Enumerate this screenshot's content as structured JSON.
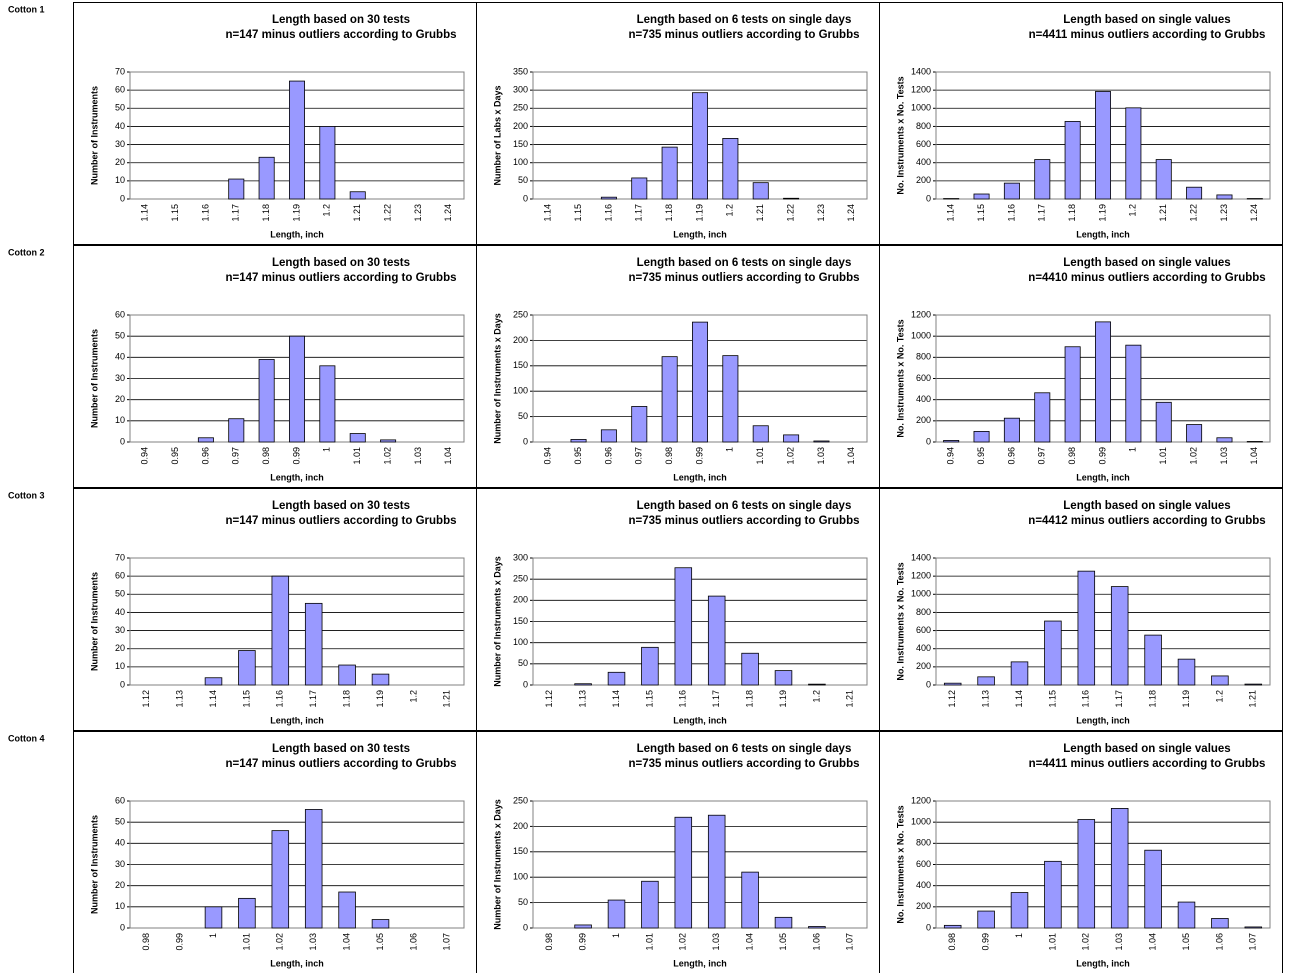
{
  "row_labels": [
    "Cotton 1",
    "Cotton 2",
    "Cotton 3",
    "Cotton 4"
  ],
  "chart_data": [
    {
      "type": "bar",
      "title": [
        "Length based on 30 tests",
        "n=147 minus outliers according to Grubbs"
      ],
      "xlabel": "Length, inch",
      "ylabel": "Number of Instruments",
      "categories": [
        "1.14",
        "1.15",
        "1.16",
        "1.17",
        "1.18",
        "1.19",
        "1.2",
        "1.21",
        "1.22",
        "1.23",
        "1.24"
      ],
      "values": [
        0,
        0,
        0,
        11,
        23,
        65,
        40,
        4,
        0,
        0,
        0
      ],
      "color": "#9999ff",
      "ylim": [
        0,
        70
      ],
      "yticks": [
        0,
        10,
        20,
        30,
        40,
        50,
        60,
        70
      ],
      "grid": true
    },
    {
      "type": "bar",
      "title": [
        "Length based on 6 tests on single days",
        "n=735 minus outliers according to Grubbs"
      ],
      "xlabel": "Length, inch",
      "ylabel": "Number of Labs x Days",
      "categories": [
        "1.14",
        "1.15",
        "1.16",
        "1.17",
        "1.18",
        "1.19",
        "1.2",
        "1.21",
        "1.22",
        "1.23",
        "1.24"
      ],
      "values": [
        0,
        0,
        5,
        58,
        143,
        293,
        167,
        45,
        2,
        0,
        0
      ],
      "color": "#9999ff",
      "ylim": [
        0,
        350
      ],
      "yticks": [
        0,
        50,
        100,
        150,
        200,
        250,
        300,
        350
      ],
      "grid": true
    },
    {
      "type": "bar",
      "title": [
        "Length based on single values",
        "n=4411 minus outliers according to Grubbs"
      ],
      "xlabel": "Length, inch",
      "ylabel": "No. Instruments x No. Tests",
      "categories": [
        "1.14",
        "1.15",
        "1.16",
        "1.17",
        "1.18",
        "1.19",
        "1.2",
        "1.21",
        "1.22",
        "1.23",
        "1.24"
      ],
      "values": [
        5,
        55,
        175,
        435,
        855,
        1185,
        1005,
        435,
        130,
        45,
        5
      ],
      "color": "#9999ff",
      "ylim": [
        0,
        1400
      ],
      "yticks": [
        0,
        200,
        400,
        600,
        800,
        1000,
        1200,
        1400
      ],
      "grid": true
    },
    {
      "type": "bar",
      "title": [
        "Length based on 30 tests",
        "n=147 minus outliers according to Grubbs"
      ],
      "xlabel": "Length, inch",
      "ylabel": "Number of Instruments",
      "categories": [
        "0.94",
        "0.95",
        "0.96",
        "0.97",
        "0.98",
        "0.99",
        "1",
        "1.01",
        "1.02",
        "1.03",
        "1.04"
      ],
      "values": [
        0,
        0,
        2,
        11,
        39,
        50,
        36,
        4,
        1,
        0,
        0
      ],
      "color": "#9999ff",
      "ylim": [
        0,
        60
      ],
      "yticks": [
        0,
        10,
        20,
        30,
        40,
        50,
        60
      ],
      "grid": true
    },
    {
      "type": "bar",
      "title": [
        "Length based on 6 tests on single days",
        "n=735 minus outliers according to Grubbs"
      ],
      "xlabel": "Length, inch",
      "ylabel": "Number of Instruments x Days",
      "categories": [
        "0.94",
        "0.95",
        "0.96",
        "0.97",
        "0.98",
        "0.99",
        "1",
        "1.01",
        "1.02",
        "1.03",
        "1.04"
      ],
      "values": [
        0,
        5,
        24,
        70,
        168,
        236,
        170,
        32,
        14,
        2,
        0
      ],
      "color": "#9999ff",
      "ylim": [
        0,
        250
      ],
      "yticks": [
        0,
        50,
        100,
        150,
        200,
        250
      ],
      "grid": true
    },
    {
      "type": "bar",
      "title": [
        "Length based on single values",
        "n=4410 minus outliers according to Grubbs"
      ],
      "xlabel": "Length, inch",
      "ylabel": "No. Instruments x No. Tests",
      "categories": [
        "0.94",
        "0.95",
        "0.96",
        "0.97",
        "0.98",
        "0.99",
        "1",
        "1.01",
        "1.02",
        "1.03",
        "1.04"
      ],
      "values": [
        15,
        100,
        225,
        465,
        900,
        1135,
        915,
        375,
        165,
        40,
        5
      ],
      "color": "#9999ff",
      "ylim": [
        0,
        1200
      ],
      "yticks": [
        0,
        200,
        400,
        600,
        800,
        1000,
        1200
      ],
      "grid": true
    },
    {
      "type": "bar",
      "title": [
        "Length based on 30 tests",
        "n=147 minus outliers according to Grubbs"
      ],
      "xlabel": "Length, inch",
      "ylabel": "Number of Instruments",
      "categories": [
        "1.12",
        "1.13",
        "1.14",
        "1.15",
        "1.16",
        "1.17",
        "1.18",
        "1.19",
        "1.2",
        "1.21"
      ],
      "values": [
        0,
        0,
        4,
        19,
        60,
        45,
        11,
        6,
        0,
        0
      ],
      "color": "#9999ff",
      "ylim": [
        0,
        70
      ],
      "yticks": [
        0,
        10,
        20,
        30,
        40,
        50,
        60,
        70
      ],
      "grid": true
    },
    {
      "type": "bar",
      "title": [
        "Length based on 6 tests on single days",
        "n=735 minus outliers according to Grubbs"
      ],
      "xlabel": "Length, inch",
      "ylabel": "Number of Instruments x Days",
      "categories": [
        "1.12",
        "1.13",
        "1.14",
        "1.15",
        "1.16",
        "1.17",
        "1.18",
        "1.19",
        "1.2",
        "1.21"
      ],
      "values": [
        0,
        3,
        30,
        89,
        277,
        210,
        75,
        34,
        2,
        0
      ],
      "color": "#9999ff",
      "ylim": [
        0,
        300
      ],
      "yticks": [
        0,
        50,
        100,
        150,
        200,
        250,
        300
      ],
      "grid": true
    },
    {
      "type": "bar",
      "title": [
        "Length based on single values",
        "n=4412 minus outliers according to Grubbs"
      ],
      "xlabel": "Length, inch",
      "ylabel": "No. Instruments x No. Tests",
      "categories": [
        "1.12",
        "1.13",
        "1.14",
        "1.15",
        "1.16",
        "1.17",
        "1.18",
        "1.19",
        "1.2",
        "1.21"
      ],
      "values": [
        20,
        90,
        255,
        705,
        1255,
        1085,
        550,
        285,
        100,
        10
      ],
      "color": "#9999ff",
      "ylim": [
        0,
        1400
      ],
      "yticks": [
        0,
        200,
        400,
        600,
        800,
        1000,
        1200,
        1400
      ],
      "grid": true
    },
    {
      "type": "bar",
      "title": [
        "Length based on 30 tests",
        "n=147 minus outliers according to Grubbs"
      ],
      "xlabel": "Length, inch",
      "ylabel": "Number of Instruments",
      "categories": [
        "0.98",
        "0.99",
        "1",
        "1.01",
        "1.02",
        "1.03",
        "1.04",
        "1.05",
        "1.06",
        "1.07"
      ],
      "values": [
        0,
        0,
        10,
        14,
        46,
        56,
        17,
        4,
        0,
        0
      ],
      "color": "#9999ff",
      "ylim": [
        0,
        60
      ],
      "yticks": [
        0,
        10,
        20,
        30,
        40,
        50,
        60
      ],
      "grid": true
    },
    {
      "type": "bar",
      "title": [
        "Length based on 6 tests on single days",
        "n=735 minus outliers according to Grubbs"
      ],
      "xlabel": "Length, inch",
      "ylabel": "Number of Instruments x Days",
      "categories": [
        "0.98",
        "0.99",
        "1",
        "1.01",
        "1.02",
        "1.03",
        "1.04",
        "1.05",
        "1.06",
        "1.07"
      ],
      "values": [
        0,
        6,
        55,
        92,
        218,
        222,
        110,
        21,
        3,
        0
      ],
      "color": "#9999ff",
      "ylim": [
        0,
        250
      ],
      "yticks": [
        0,
        50,
        100,
        150,
        200,
        250
      ],
      "grid": true
    },
    {
      "type": "bar",
      "title": [
        "Length based on single values",
        "n=4411 minus outliers according to Grubbs"
      ],
      "xlabel": "Length, inch",
      "ylabel": "No. Instruments x No. Tests",
      "categories": [
        "0.98",
        "0.99",
        "1",
        "1.01",
        "1.02",
        "1.03",
        "1.04",
        "1.05",
        "1.06",
        "1.07"
      ],
      "values": [
        25,
        160,
        335,
        630,
        1025,
        1130,
        735,
        245,
        90,
        10
      ],
      "color": "#9999ff",
      "ylim": [
        0,
        1200
      ],
      "yticks": [
        0,
        200,
        400,
        600,
        800,
        1000,
        1200
      ],
      "grid": true
    }
  ]
}
